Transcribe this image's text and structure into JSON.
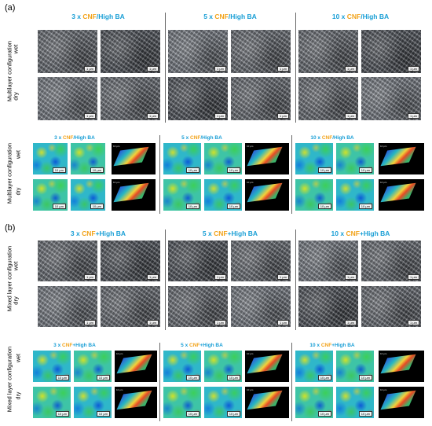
{
  "figure": {
    "panel_a_label": "(a)",
    "panel_b_label": "(b)",
    "scale_bar": "1 μm",
    "afm_scale_bar": "10 μm",
    "afm_axis": "10 μm",
    "panel_a": {
      "sem_side_label": "Multilayer configuration",
      "afm_side_label": "Multilayer configuration",
      "groups": [
        {
          "prefix": "3 x ",
          "hl": "CNF",
          "suffix": "/High BA"
        },
        {
          "prefix": "5 x ",
          "hl": "CNF",
          "suffix": "/High BA"
        },
        {
          "prefix": "10 x ",
          "hl": "CNF",
          "suffix": "/High BA"
        }
      ]
    },
    "panel_b": {
      "sem_side_label": "Mixed layer configuration",
      "afm_side_label": "Mixed layer configuration",
      "groups": [
        {
          "prefix": "3 x ",
          "hl": "CNF",
          "suffix": "+High BA"
        },
        {
          "prefix": "5 x ",
          "hl": "CNF",
          "suffix": "+High BA"
        },
        {
          "prefix": "10 x ",
          "hl": "CNF",
          "suffix": "+High BA"
        }
      ]
    },
    "row_labels": {
      "wet": "wet",
      "dry": "dry"
    }
  }
}
